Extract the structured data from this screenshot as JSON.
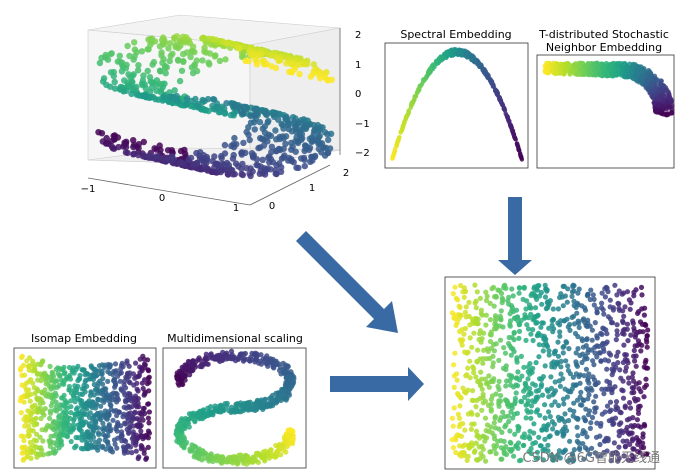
{
  "colors": {
    "viridis": [
      "#440154",
      "#482878",
      "#3e4a89",
      "#31688e",
      "#26828e",
      "#1f9e89",
      "#35b779",
      "#6ece58",
      "#b5de2b",
      "#fde725"
    ],
    "arrow": "#3a6aa3",
    "frame": "#333333",
    "watermark": "#777777"
  },
  "watermark": "CSDN @6G智能无线通",
  "chart_data": [
    {
      "id": "s-curve-3d",
      "type": "scatter",
      "projection": "3d",
      "title": "",
      "description_of_data": "3D S-curve point cloud colored along the curve parameter",
      "x_ticks": [
        "−1",
        "0",
        "1"
      ],
      "y_ticks": [
        "0",
        "1",
        "2"
      ],
      "z_ticks": [
        "−2",
        "−1",
        "0",
        "1",
        "2"
      ],
      "xlim": [
        -1,
        1
      ],
      "ylim": [
        0,
        2
      ],
      "zlim": [
        -2,
        2
      ],
      "grid": true
    },
    {
      "id": "spectral",
      "type": "scatter",
      "title": "Spectral Embedding",
      "shape": "inverted parabola",
      "points_x_from_fraction": [
        0,
        1
      ],
      "y_range_fraction": [
        0,
        1
      ]
    },
    {
      "id": "tsne",
      "type": "scatter",
      "title_lines": [
        "T-distributed Stochastic",
        "Neighbor Embedding"
      ],
      "shape": "thick curved band"
    },
    {
      "id": "isomap",
      "type": "scatter",
      "title": "Isomap Embedding",
      "shape": "rectangle with pinched middle"
    },
    {
      "id": "mds",
      "type": "scatter",
      "title": "Multidimensional scaling",
      "shape": "S-shape"
    },
    {
      "id": "unrolled",
      "type": "scatter",
      "title": "",
      "shape": "filled rectangle, color gradient left to right"
    }
  ]
}
